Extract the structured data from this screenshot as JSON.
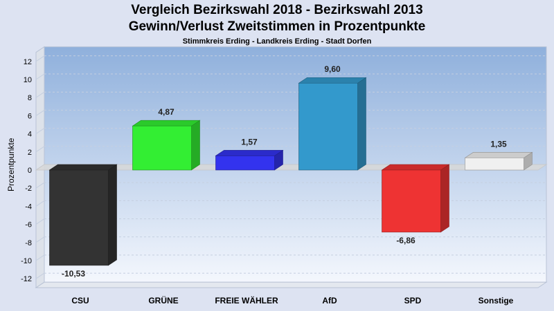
{
  "title_line1": "Vergleich Bezirkswahl 2018 - Bezirkswahl 2013",
  "title_line2": "Gewinn/Verlust Zweitstimmen in Prozentpunkte",
  "subtitle": "Stimmkreis Erding - Landkreis Erding - Stadt Dorfen",
  "chart_data": {
    "type": "bar",
    "title": "Vergleich Bezirkswahl 2018 - Bezirkswahl 2013 / Gewinn/Verlust Zweitstimmen in Prozentpunkte",
    "subtitle": "Stimmkreis Erding - Landkreis Erding - Stadt Dorfen",
    "ylabel": "Prozentpunkte",
    "xlabel": "",
    "ylim": [
      -13,
      13
    ],
    "yticks": [
      -12,
      -10,
      -8,
      -6,
      -4,
      -2,
      0,
      2,
      4,
      6,
      8,
      10,
      12
    ],
    "categories": [
      "CSU",
      "GRÜNE",
      "FREIE WÄHLER",
      "AfD",
      "SPD",
      "Sonstige"
    ],
    "values": [
      -10.53,
      4.87,
      1.57,
      9.6,
      -6.86,
      1.35
    ],
    "value_labels": [
      "-10,53",
      "4,87",
      "1,57",
      "9,60",
      "-6,86",
      "1,35"
    ],
    "colors": [
      "#333333",
      "#33ee33",
      "#3333ee",
      "#3399cc",
      "#ee3333",
      "#f0f0f0"
    ],
    "grid": true,
    "style": "3d"
  }
}
